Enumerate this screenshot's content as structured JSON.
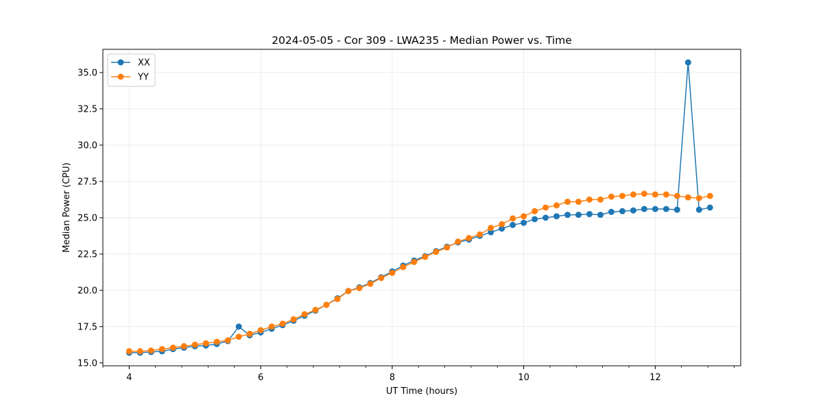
{
  "chart_data": {
    "type": "line",
    "title": "2024-05-05 - Cor 309 - LWA235 - Median Power vs. Time",
    "xlabel": "UT Time (hours)",
    "ylabel": "Median Power (CPU)",
    "xlim": [
      3.6,
      13.3
    ],
    "ylim": [
      14.8,
      36.6
    ],
    "xticks": [
      4,
      6,
      8,
      10,
      12
    ],
    "xtick_labels": [
      "4",
      "6",
      "8",
      "10",
      "12"
    ],
    "xminor_step": 0.4,
    "yticks": [
      15.0,
      17.5,
      20.0,
      22.5,
      25.0,
      27.5,
      30.0,
      32.5,
      35.0
    ],
    "ytick_labels": [
      "15.0",
      "17.5",
      "20.0",
      "22.5",
      "25.0",
      "27.5",
      "30.0",
      "32.5",
      "35.0"
    ],
    "grid": true,
    "legend_position": "top-left",
    "x": [
      4.0,
      4.167,
      4.333,
      4.5,
      4.667,
      4.833,
      5.0,
      5.167,
      5.333,
      5.5,
      5.667,
      5.833,
      6.0,
      6.167,
      6.333,
      6.5,
      6.667,
      6.833,
      7.0,
      7.167,
      7.333,
      7.5,
      7.667,
      7.833,
      8.0,
      8.167,
      8.333,
      8.5,
      8.667,
      8.833,
      9.0,
      9.167,
      9.333,
      9.5,
      9.667,
      9.833,
      10.0,
      10.167,
      10.333,
      10.5,
      10.667,
      10.833,
      11.0,
      11.167,
      11.333,
      11.5,
      11.667,
      11.833,
      12.0,
      12.167,
      12.333,
      12.5,
      12.667,
      12.833
    ],
    "series": [
      {
        "name": "XX",
        "color": "#1f77b4",
        "values": [
          15.7,
          15.7,
          15.75,
          15.8,
          15.95,
          16.05,
          16.15,
          16.2,
          16.3,
          16.5,
          17.5,
          16.9,
          17.1,
          17.35,
          17.6,
          17.9,
          18.25,
          18.6,
          19.0,
          19.45,
          19.95,
          20.2,
          20.5,
          20.9,
          21.3,
          21.7,
          22.05,
          22.35,
          22.7,
          23.0,
          23.3,
          23.5,
          23.75,
          24.0,
          24.25,
          24.5,
          24.65,
          24.9,
          25.0,
          25.1,
          25.2,
          25.2,
          25.25,
          25.2,
          25.4,
          25.45,
          25.5,
          25.6,
          25.6,
          25.6,
          25.55,
          35.7,
          25.55,
          25.7
        ]
      },
      {
        "name": "YY",
        "color": "#ff7f0e",
        "values": [
          15.8,
          15.8,
          15.85,
          15.95,
          16.05,
          16.15,
          16.25,
          16.35,
          16.45,
          16.55,
          16.8,
          17.0,
          17.25,
          17.5,
          17.7,
          18.0,
          18.35,
          18.65,
          19.0,
          19.4,
          19.95,
          20.15,
          20.45,
          20.85,
          21.2,
          21.6,
          21.95,
          22.3,
          22.65,
          22.95,
          23.35,
          23.6,
          23.85,
          24.3,
          24.55,
          24.95,
          25.1,
          25.45,
          25.7,
          25.85,
          26.1,
          26.1,
          26.25,
          26.25,
          26.45,
          26.5,
          26.6,
          26.65,
          26.6,
          26.6,
          26.5,
          26.4,
          26.35,
          26.5
        ]
      }
    ]
  }
}
